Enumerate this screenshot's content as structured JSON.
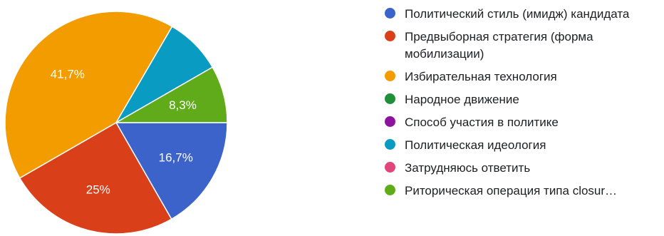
{
  "chart_data": {
    "type": "pie",
    "title": "",
    "slices": [
      {
        "label": "Политический стиль (имидж) кандидата",
        "value": 16.7,
        "display": "16,7%",
        "color": "#3b63c9"
      },
      {
        "label": "Предвыборная стратегия (форма мобилизации)",
        "value": 25,
        "display": "25%",
        "color": "#d9401a"
      },
      {
        "label": "Избирательная технология",
        "value": 41.7,
        "display": "41,7%",
        "color": "#f39c00"
      },
      {
        "label": "Народное движение",
        "value": 0,
        "display": "",
        "color": "#1f8f3a"
      },
      {
        "label": "Способ участия в политике",
        "value": 0,
        "display": "",
        "color": "#8e12a0"
      },
      {
        "label": "Политическая идеология",
        "value": 8.3,
        "display": "",
        "color": "#0a9bc3"
      },
      {
        "label": "Затрудняюсь ответить",
        "value": 0,
        "display": "",
        "color": "#e0457b"
      },
      {
        "label": "Риторическая операция типа closur…",
        "value": 8.3,
        "display": "8,3%",
        "color": "#5fab1a"
      }
    ],
    "legend_position": "right"
  }
}
